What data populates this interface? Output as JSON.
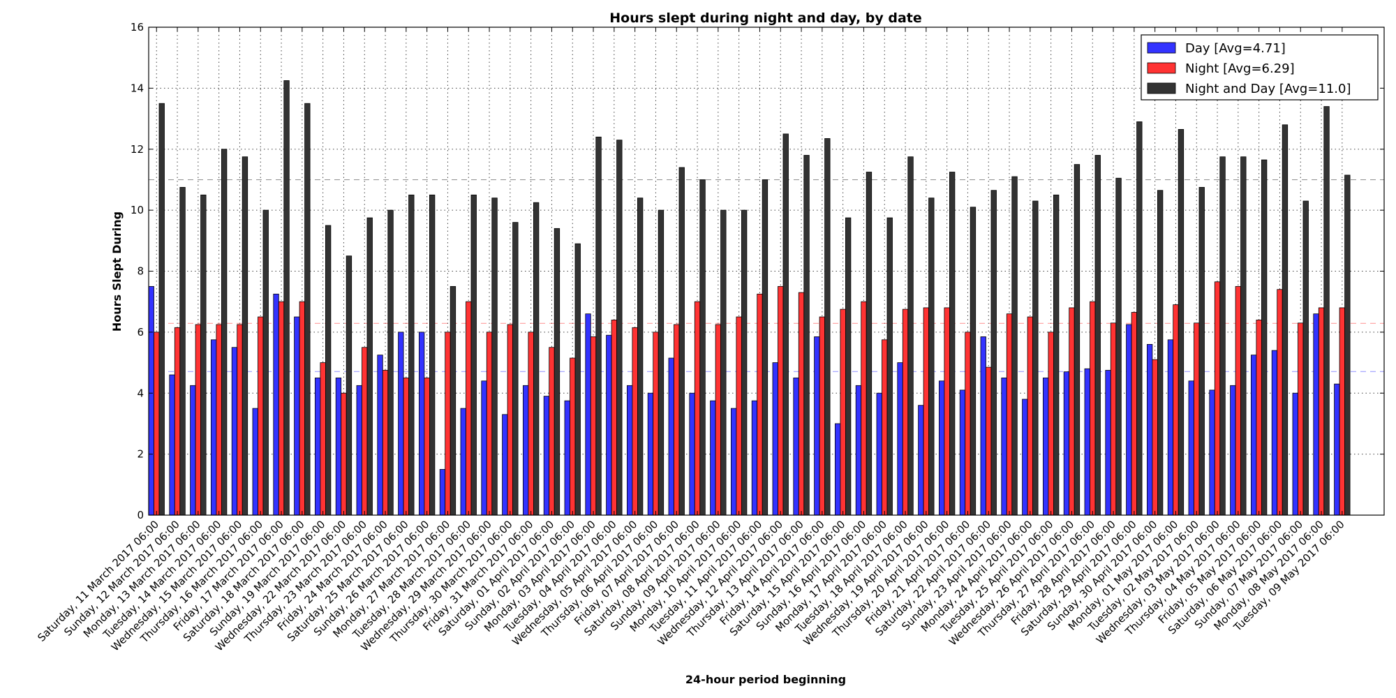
{
  "chart_data": {
    "type": "bar",
    "title": "Hours slept during night and day, by date",
    "xlabel": "24-hour period beginning",
    "ylabel": "Hours Slept During",
    "ylim": [
      0,
      16
    ],
    "yticks": [
      0,
      2,
      4,
      6,
      8,
      10,
      12,
      14,
      16
    ],
    "grid": true,
    "legend_position": "top-right",
    "categories": [
      "Saturday, 11 March 2017 06:00",
      "Sunday, 12 March 2017 06:00",
      "Monday, 13 March 2017 06:00",
      "Tuesday, 14 March 2017 06:00",
      "Wednesday, 15 March 2017 06:00",
      "Thursday, 16 March 2017 06:00",
      "Friday, 17 March 2017 06:00",
      "Saturday, 18 March 2017 06:00",
      "Sunday, 19 March 2017 06:00",
      "Wednesday, 22 March 2017 06:00",
      "Thursday, 23 March 2017 06:00",
      "Friday, 24 March 2017 06:00",
      "Saturday, 25 March 2017 06:00",
      "Sunday, 26 March 2017 06:00",
      "Monday, 27 March 2017 06:00",
      "Tuesday, 28 March 2017 06:00",
      "Wednesday, 29 March 2017 06:00",
      "Thursday, 30 March 2017 06:00",
      "Friday, 31 March 2017 06:00",
      "Saturday, 01 April 2017 06:00",
      "Sunday, 02 April 2017 06:00",
      "Monday, 03 April 2017 06:00",
      "Tuesday, 04 April 2017 06:00",
      "Wednesday, 05 April 2017 06:00",
      "Thursday, 06 April 2017 06:00",
      "Friday, 07 April 2017 06:00",
      "Saturday, 08 April 2017 06:00",
      "Sunday, 09 April 2017 06:00",
      "Monday, 10 April 2017 06:00",
      "Tuesday, 11 April 2017 06:00",
      "Wednesday, 12 April 2017 06:00",
      "Thursday, 13 April 2017 06:00",
      "Friday, 14 April 2017 06:00",
      "Saturday, 15 April 2017 06:00",
      "Sunday, 16 April 2017 06:00",
      "Monday, 17 April 2017 06:00",
      "Tuesday, 18 April 2017 06:00",
      "Wednesday, 19 April 2017 06:00",
      "Thursday, 20 April 2017 06:00",
      "Friday, 21 April 2017 06:00",
      "Saturday, 22 April 2017 06:00",
      "Sunday, 23 April 2017 06:00",
      "Monday, 24 April 2017 06:00",
      "Tuesday, 25 April 2017 06:00",
      "Wednesday, 26 April 2017 06:00",
      "Thursday, 27 April 2017 06:00",
      "Friday, 28 April 2017 06:00",
      "Saturday, 29 April 2017 06:00",
      "Sunday, 30 April 2017 06:00",
      "Monday, 01 May 2017 06:00",
      "Tuesday, 02 May 2017 06:00",
      "Wednesday, 03 May 2017 06:00",
      "Thursday, 04 May 2017 06:00",
      "Friday, 05 May 2017 06:00",
      "Saturday, 06 May 2017 06:00",
      "Sunday, 07 May 2017 06:00",
      "Monday, 08 May 2017 06:00",
      "Tuesday, 09 May 2017 06:00"
    ],
    "series": [
      {
        "name": "Day [Avg=4.71]",
        "color": "#3333ff",
        "average": 4.71,
        "values": [
          7.5,
          4.6,
          4.25,
          5.75,
          5.5,
          3.5,
          7.25,
          6.5,
          4.5,
          4.5,
          4.25,
          5.25,
          6.0,
          6.0,
          1.5,
          3.5,
          4.4,
          3.3,
          4.25,
          3.9,
          3.75,
          6.6,
          5.9,
          4.25,
          4.0,
          5.15,
          4.0,
          3.75,
          3.5,
          3.75,
          5.0,
          4.5,
          5.85,
          3.0,
          4.25,
          4.0,
          5.0,
          3.6,
          4.4,
          4.1,
          5.85,
          4.5,
          3.8,
          4.5,
          4.7,
          4.8,
          4.75,
          6.25,
          5.6,
          5.75,
          4.4,
          4.1,
          4.25,
          5.25,
          5.4,
          4.0,
          6.6,
          4.3
        ]
      },
      {
        "name": "Night [Avg=6.29]",
        "color": "#ff3333",
        "average": 6.29,
        "values": [
          6.0,
          6.15,
          6.25,
          6.25,
          6.25,
          6.5,
          7.0,
          7.0,
          5.0,
          4.0,
          5.5,
          4.75,
          4.5,
          4.5,
          6.0,
          7.0,
          6.0,
          6.25,
          6.0,
          5.5,
          5.15,
          5.85,
          6.4,
          6.15,
          6.0,
          6.25,
          7.0,
          6.25,
          6.5,
          7.25,
          7.5,
          7.3,
          6.5,
          6.75,
          7.0,
          5.75,
          6.75,
          6.8,
          6.8,
          6.0,
          4.85,
          6.6,
          6.5,
          6.0,
          6.8,
          7.0,
          6.3,
          6.65,
          5.1,
          6.9,
          6.3,
          7.65,
          7.5,
          6.4,
          7.4,
          6.3,
          6.8,
          6.8
        ]
      },
      {
        "name": "Night and Day [Avg=11.0]",
        "color": "#333333",
        "average": 11.0,
        "values": [
          13.5,
          10.75,
          10.5,
          12.0,
          11.75,
          10.0,
          14.25,
          13.5,
          9.5,
          8.5,
          9.75,
          10.0,
          10.5,
          10.5,
          7.5,
          10.5,
          10.4,
          9.6,
          10.25,
          9.4,
          8.9,
          12.4,
          12.3,
          10.4,
          10.0,
          11.4,
          11.0,
          10.0,
          10.0,
          11.0,
          12.5,
          11.8,
          12.35,
          9.75,
          11.25,
          9.75,
          11.75,
          10.4,
          11.25,
          10.1,
          10.65,
          11.1,
          10.3,
          10.5,
          11.5,
          11.8,
          11.05,
          12.9,
          10.65,
          12.65,
          10.75,
          11.75,
          11.75,
          11.65,
          12.8,
          10.3,
          13.4,
          11.15
        ]
      }
    ]
  }
}
